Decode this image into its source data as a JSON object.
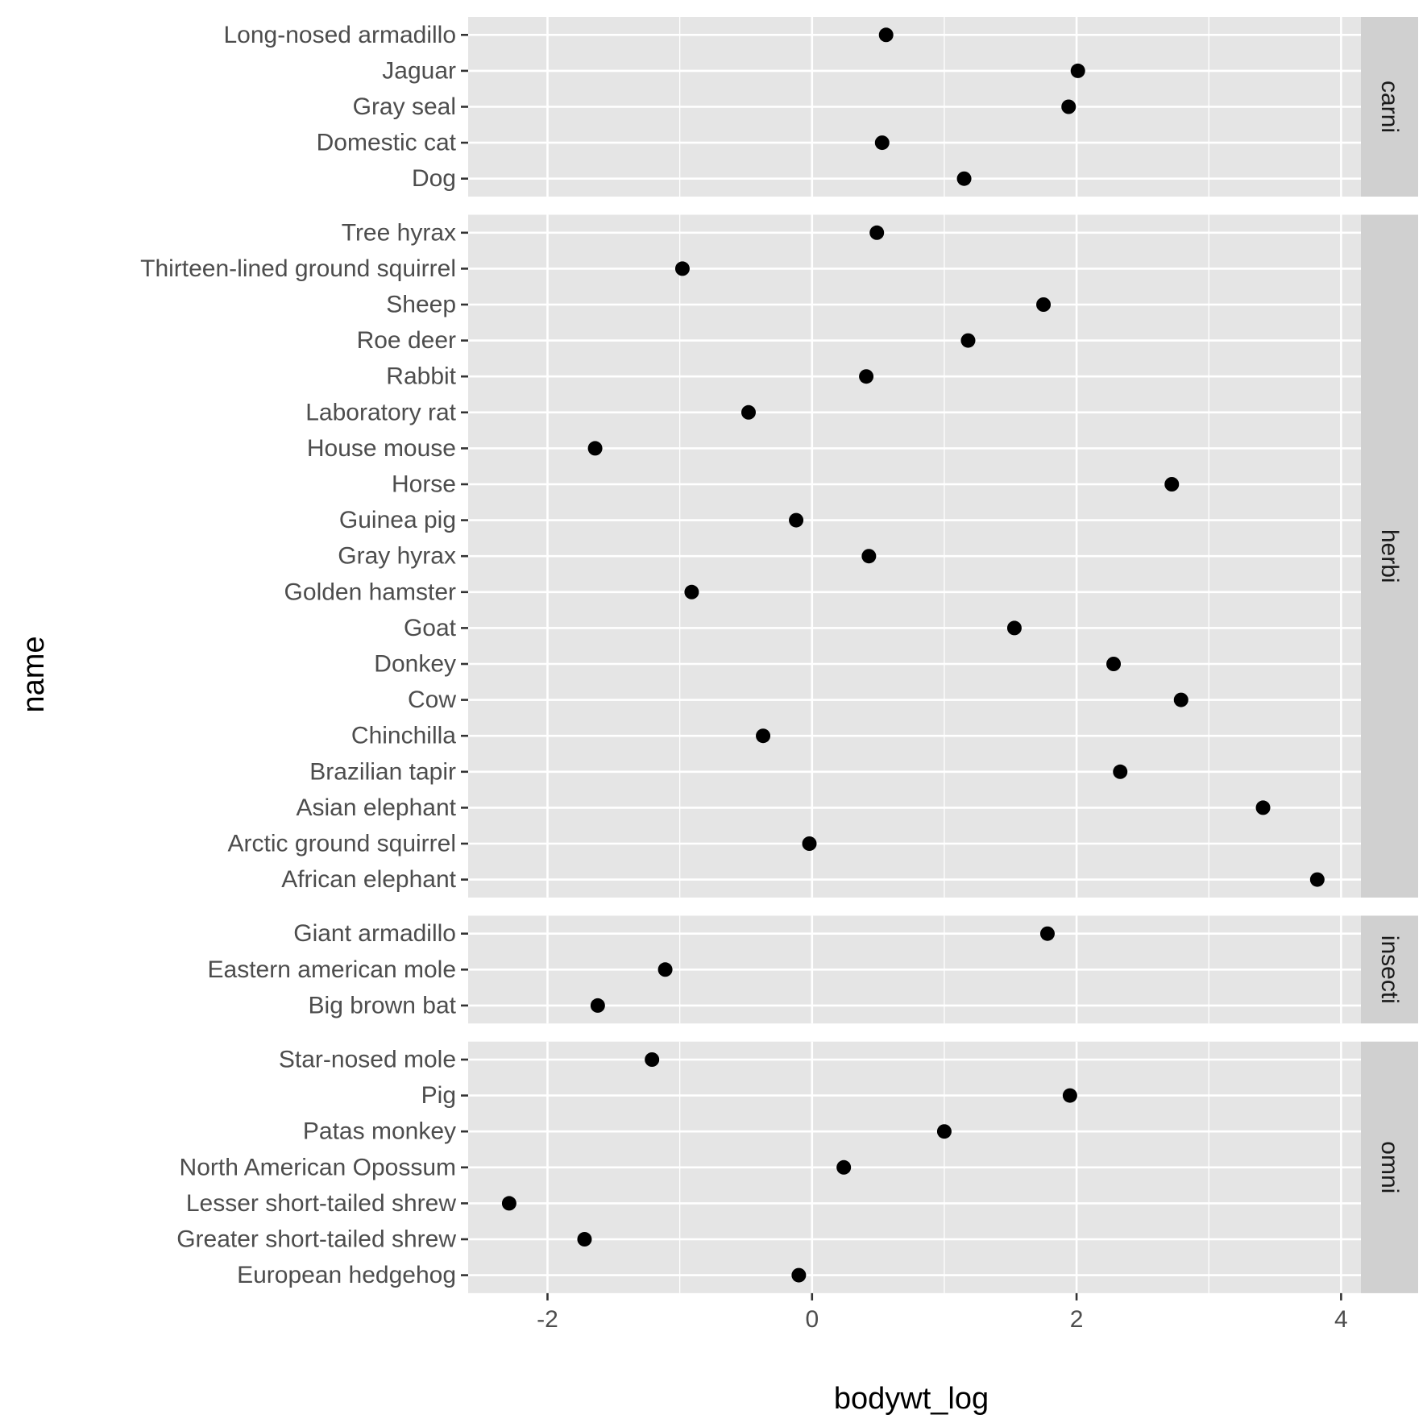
{
  "chart_data": {
    "type": "scatter",
    "xlabel": "bodywt_log",
    "ylabel": "name",
    "xlim": [
      -2.6,
      4.15
    ],
    "x_ticks": [
      -2,
      0,
      2,
      4
    ],
    "x_tick_labels": [
      "-2",
      "0",
      "2",
      "4"
    ],
    "grid": true,
    "facet_by": "vore",
    "colors": {
      "panel_bg": "#e5e5e5",
      "grid_major": "#ffffff",
      "strip_bg": "#d0d0d0",
      "point": "#000000",
      "tick_text": "#4d4d4d"
    },
    "panels": [
      {
        "label": "carni",
        "points": [
          {
            "name": "Long-nosed armadillo",
            "x": 0.56
          },
          {
            "name": "Jaguar",
            "x": 2.01
          },
          {
            "name": "Gray seal",
            "x": 1.94
          },
          {
            "name": "Domestic cat",
            "x": 0.53
          },
          {
            "name": "Dog",
            "x": 1.15
          }
        ]
      },
      {
        "label": "herbi",
        "points": [
          {
            "name": "Tree hyrax",
            "x": 0.49
          },
          {
            "name": "Thirteen-lined ground squirrel",
            "x": -0.98
          },
          {
            "name": "Sheep",
            "x": 1.75
          },
          {
            "name": "Roe deer",
            "x": 1.18
          },
          {
            "name": "Rabbit",
            "x": 0.41
          },
          {
            "name": "Laboratory rat",
            "x": -0.48
          },
          {
            "name": "House mouse",
            "x": -1.64
          },
          {
            "name": "Horse",
            "x": 2.72
          },
          {
            "name": "Guinea pig",
            "x": -0.12
          },
          {
            "name": "Gray hyrax",
            "x": 0.43
          },
          {
            "name": "Golden hamster",
            "x": -0.91
          },
          {
            "name": "Goat",
            "x": 1.53
          },
          {
            "name": "Donkey",
            "x": 2.28
          },
          {
            "name": "Cow",
            "x": 2.79
          },
          {
            "name": "Chinchilla",
            "x": -0.37
          },
          {
            "name": "Brazilian tapir",
            "x": 2.33
          },
          {
            "name": "Asian elephant",
            "x": 3.41
          },
          {
            "name": "Arctic ground squirrel",
            "x": -0.02
          },
          {
            "name": "African elephant",
            "x": 3.82
          }
        ]
      },
      {
        "label": "insecti",
        "points": [
          {
            "name": "Giant armadillo",
            "x": 1.78
          },
          {
            "name": "Eastern american mole",
            "x": -1.11
          },
          {
            "name": "Big brown bat",
            "x": -1.62
          }
        ]
      },
      {
        "label": "omni",
        "points": [
          {
            "name": "Star-nosed mole",
            "x": -1.21
          },
          {
            "name": "Pig",
            "x": 1.95
          },
          {
            "name": "Patas monkey",
            "x": 1.0
          },
          {
            "name": "North American Opossum",
            "x": 0.24
          },
          {
            "name": "Lesser short-tailed shrew",
            "x": -2.29
          },
          {
            "name": "Greater short-tailed shrew",
            "x": -1.72
          },
          {
            "name": "European hedgehog",
            "x": -0.1
          }
        ]
      }
    ]
  }
}
